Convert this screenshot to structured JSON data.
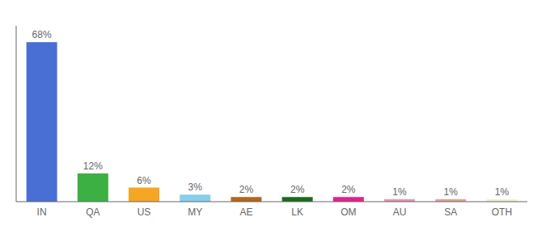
{
  "chart_data": {
    "type": "bar",
    "categories": [
      "IN",
      "QA",
      "US",
      "MY",
      "AE",
      "LK",
      "OM",
      "AU",
      "SA",
      "OTH"
    ],
    "values": [
      68,
      12,
      6,
      3,
      2,
      2,
      2,
      1,
      1,
      1
    ],
    "value_labels": [
      "68%",
      "12%",
      "6%",
      "3%",
      "2%",
      "2%",
      "2%",
      "1%",
      "1%",
      "1%"
    ],
    "colors": [
      "#4a6fd4",
      "#3cb043",
      "#f5a623",
      "#87ceeb",
      "#b5651d",
      "#1a6b1a",
      "#e91e8c",
      "#f48fb1",
      "#e8a090",
      "#f0f0d8"
    ],
    "ylim": [
      0,
      75
    ],
    "data_labels": true,
    "tick_labels": "x",
    "grid": false
  }
}
